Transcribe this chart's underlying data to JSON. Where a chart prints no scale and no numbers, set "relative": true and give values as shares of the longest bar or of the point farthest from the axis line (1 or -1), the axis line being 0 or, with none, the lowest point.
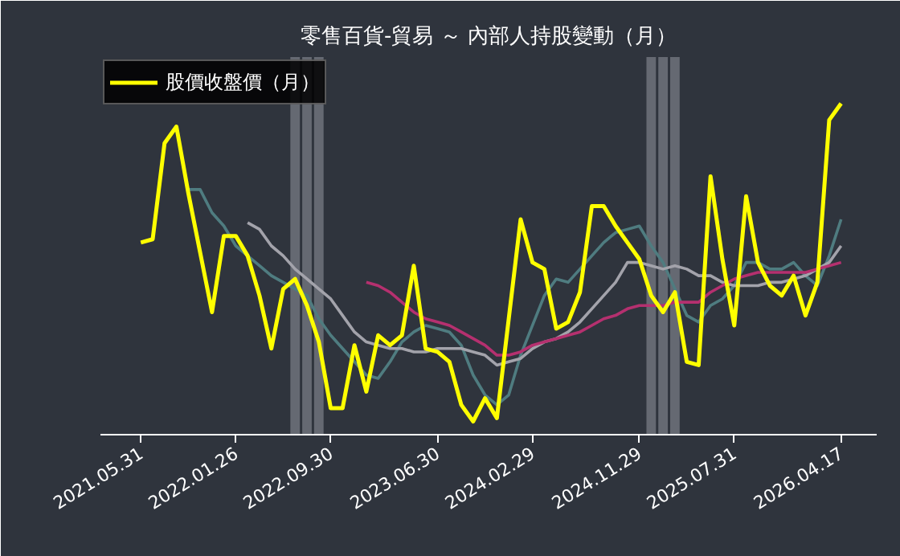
{
  "chart_data": {
    "type": "line",
    "title": "零售百貨-貿易 ～ 內部人持股變動（月）",
    "relative": true,
    "categories": [
      "2021.05.31",
      null,
      null,
      null,
      null,
      null,
      null,
      null,
      "2022.01.26",
      null,
      null,
      null,
      null,
      null,
      null,
      null,
      "2022.09.30",
      null,
      null,
      null,
      null,
      null,
      null,
      null,
      null,
      "2023.06.30",
      null,
      null,
      null,
      null,
      null,
      null,
      null,
      "2024.02.29",
      null,
      null,
      null,
      null,
      null,
      null,
      null,
      null,
      "2024.11.29",
      null,
      null,
      null,
      null,
      null,
      null,
      null,
      "2025.07.31",
      null,
      null,
      null,
      null,
      null,
      null,
      null,
      null,
      "2026.04.17"
    ],
    "series": [
      {
        "name": null,
        "color": "#4f7c80",
        "values": [
          null,
          null,
          null,
          null,
          0.74,
          0.74,
          0.67,
          0.63,
          0.57,
          0.54,
          0.51,
          0.48,
          0.46,
          0.44,
          0.42,
          0.35,
          0.3,
          0.26,
          0.22,
          0.18,
          0.17,
          0.22,
          0.28,
          0.31,
          0.33,
          0.32,
          0.31,
          0.27,
          0.18,
          0.12,
          0.09,
          0.12,
          0.24,
          0.33,
          0.42,
          0.47,
          0.46,
          0.5,
          0.54,
          0.58,
          0.61,
          0.62,
          0.63,
          0.57,
          0.52,
          0.44,
          0.36,
          0.34,
          0.39,
          0.41,
          0.45,
          0.52,
          0.52,
          0.5,
          0.5,
          0.52,
          0.48,
          0.45,
          0.54,
          0.65
        ]
      },
      {
        "name": null,
        "color": "#a3a3ab",
        "values": [
          null,
          null,
          null,
          null,
          null,
          null,
          null,
          null,
          null,
          0.64,
          0.62,
          0.57,
          0.54,
          0.5,
          0.47,
          0.44,
          0.41,
          0.36,
          0.31,
          0.28,
          0.27,
          0.26,
          0.26,
          0.25,
          0.25,
          0.26,
          0.26,
          0.26,
          0.25,
          0.24,
          0.21,
          0.22,
          0.23,
          0.26,
          0.28,
          0.29,
          0.31,
          0.34,
          0.38,
          0.42,
          0.46,
          0.52,
          0.52,
          0.51,
          0.5,
          0.51,
          0.5,
          0.48,
          0.48,
          0.46,
          0.45,
          0.45,
          0.45,
          0.46,
          0.46,
          0.47,
          0.48,
          0.5,
          0.52,
          0.57
        ]
      },
      {
        "name": null,
        "color": "#b5306f",
        "values": [
          null,
          null,
          null,
          null,
          null,
          null,
          null,
          null,
          null,
          null,
          null,
          null,
          null,
          null,
          null,
          null,
          null,
          null,
          null,
          0.46,
          0.45,
          0.43,
          0.4,
          0.37,
          0.35,
          0.34,
          0.33,
          0.31,
          0.29,
          0.27,
          0.24,
          0.24,
          0.25,
          0.27,
          0.28,
          0.29,
          0.3,
          0.31,
          0.33,
          0.35,
          0.36,
          0.38,
          0.39,
          0.39,
          0.39,
          0.4,
          0.4,
          0.4,
          0.43,
          0.45,
          0.47,
          0.48,
          0.49,
          0.49,
          0.49,
          0.49,
          0.49,
          0.5,
          0.51,
          0.52
        ]
      },
      {
        "name": "股價收盤價（月）",
        "color": "#ffff00",
        "values": [
          0.58,
          0.59,
          0.88,
          0.93,
          0.73,
          0.55,
          0.37,
          0.6,
          0.6,
          0.54,
          0.42,
          0.26,
          0.44,
          0.47,
          0.39,
          0.28,
          0.08,
          0.08,
          0.27,
          0.13,
          0.3,
          0.27,
          0.3,
          0.51,
          0.26,
          0.25,
          0.22,
          0.09,
          0.04,
          0.11,
          0.05,
          0.35,
          0.65,
          0.52,
          0.5,
          0.32,
          0.34,
          0.43,
          0.69,
          0.69,
          0.63,
          0.58,
          0.53,
          0.42,
          0.37,
          0.43,
          0.22,
          0.21,
          0.78,
          0.53,
          0.33,
          0.72,
          0.52,
          0.45,
          0.42,
          0.48,
          0.36,
          0.46,
          0.95,
          1.0
        ]
      }
    ],
    "legend": "top left",
    "grid": false,
    "marker": "none",
    "line_style": "solid"
  }
}
